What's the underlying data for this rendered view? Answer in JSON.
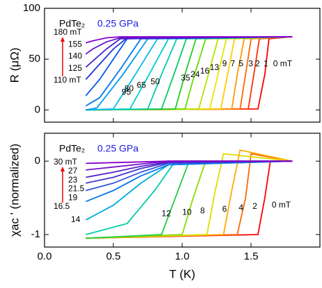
{
  "chart_data": [
    {
      "type": "line",
      "annotation": "PdTe₂",
      "pressure": "0.25 GPa",
      "ylabel": "R (μΩ)",
      "xlim": [
        0,
        2.0
      ],
      "ylim": [
        -12,
        100
      ],
      "xticks": [
        0,
        0.5,
        1,
        1.5
      ],
      "yticks": [
        0,
        50,
        100
      ],
      "series": [
        {
          "name": "0 mT",
          "color": "#ff0000",
          "x": [
            0.3,
            1.55,
            1.6,
            1.63,
            1.8
          ],
          "values": [
            0,
            1,
            35,
            70,
            72
          ]
        },
        {
          "name": "1",
          "color": "#ff3300",
          "x": [
            0.3,
            1.48,
            1.52,
            1.56,
            1.8
          ],
          "values": [
            0,
            1,
            35,
            70,
            72
          ]
        },
        {
          "name": "2",
          "color": "#ff6600",
          "x": [
            0.3,
            1.42,
            1.46,
            1.5,
            1.8
          ],
          "values": [
            0,
            1,
            35,
            70,
            72
          ]
        },
        {
          "name": "3",
          "color": "#ff9900",
          "x": [
            0.3,
            1.36,
            1.4,
            1.45,
            1.8
          ],
          "values": [
            0,
            1,
            35,
            70,
            72
          ]
        },
        {
          "name": "5",
          "color": "#ffcc00",
          "x": [
            0.3,
            1.28,
            1.33,
            1.38,
            1.8
          ],
          "values": [
            0,
            1,
            35,
            70,
            72
          ]
        },
        {
          "name": "7",
          "color": "#e6e600",
          "x": [
            0.3,
            1.2,
            1.26,
            1.32,
            1.8
          ],
          "values": [
            0,
            1,
            35,
            70,
            72
          ]
        },
        {
          "name": "9",
          "color": "#b3e600",
          "x": [
            0.3,
            1.12,
            1.19,
            1.26,
            1.8
          ],
          "values": [
            0,
            1,
            35,
            70,
            72
          ]
        },
        {
          "name": "13",
          "color": "#66dd00",
          "x": [
            0.3,
            1.02,
            1.09,
            1.17,
            1.8
          ],
          "values": [
            0,
            1,
            35,
            70,
            72
          ]
        },
        {
          "name": "16",
          "color": "#22cc22",
          "x": [
            0.3,
            0.95,
            1.02,
            1.1,
            1.8
          ],
          "values": [
            0,
            1,
            35,
            70,
            72
          ]
        },
        {
          "name": "24",
          "color": "#00cc66",
          "x": [
            0.3,
            0.85,
            0.94,
            1.03,
            1.8
          ],
          "values": [
            0,
            1,
            35,
            70,
            72
          ]
        },
        {
          "name": "35",
          "color": "#00ccaa",
          "x": [
            0.3,
            0.75,
            0.85,
            0.96,
            1.8
          ],
          "values": [
            0,
            1,
            35,
            70,
            72
          ]
        },
        {
          "name": "50",
          "color": "#00cccc",
          "x": [
            0.3,
            0.62,
            0.76,
            0.9,
            1.8
          ],
          "values": [
            0,
            1,
            35,
            70,
            72
          ]
        },
        {
          "name": "65",
          "color": "#00bbee",
          "x": [
            0.3,
            0.5,
            0.66,
            0.82,
            1.8
          ],
          "values": [
            0,
            1,
            35,
            70,
            72
          ]
        },
        {
          "name": "80",
          "color": "#0099ee",
          "x": [
            0.3,
            0.38,
            0.57,
            0.75,
            1.8
          ],
          "values": [
            0,
            2,
            35,
            70,
            72
          ]
        },
        {
          "name": "95",
          "color": "#0077ee",
          "x": [
            0.3,
            0.4,
            0.55,
            0.7,
            1.8
          ],
          "values": [
            4,
            12,
            40,
            70,
            72
          ]
        },
        {
          "name": "110 mT",
          "color": "#0055ee",
          "x": [
            0.3,
            0.4,
            0.5,
            0.6,
            1.8
          ],
          "values": [
            14,
            30,
            50,
            70,
            72
          ]
        },
        {
          "name": "125",
          "color": "#2233dd",
          "x": [
            0.3,
            0.4,
            0.5,
            0.6,
            1.8
          ],
          "values": [
            30,
            45,
            60,
            71,
            72
          ]
        },
        {
          "name": "140",
          "color": "#4422cc",
          "x": [
            0.3,
            0.35,
            0.45,
            0.55,
            1.8
          ],
          "values": [
            42,
            48,
            60,
            70,
            72
          ]
        },
        {
          "name": "155",
          "color": "#6611cc",
          "x": [
            0.3,
            0.35,
            0.45,
            0.55,
            1.8
          ],
          "values": [
            55,
            60,
            67,
            71,
            72
          ]
        },
        {
          "name": "180 mT",
          "color": "#8800cc",
          "x": [
            0.3,
            0.35,
            0.45,
            0.55,
            1.8
          ],
          "values": [
            66,
            68,
            71,
            72,
            72
          ]
        }
      ]
    },
    {
      "type": "line",
      "annotation": "PdTe₂",
      "pressure": "0.25 GPa",
      "ylabel": "χac ' (normalized)",
      "xlabel": "T (K)",
      "xlim": [
        0,
        2.0
      ],
      "ylim": [
        -1.17,
        0.38
      ],
      "xticks": [
        {
          "value": 0,
          "label": "0.0"
        },
        0.5,
        {
          "value": 1,
          "label": "1.0"
        },
        1.5
      ],
      "yticks": [
        -1,
        0
      ],
      "series": [
        {
          "name": "0 mT",
          "color": "#ff0000",
          "x": [
            0.3,
            1.55,
            1.6,
            1.64,
            1.8
          ],
          "values": [
            -1.05,
            -1.0,
            -0.5,
            0,
            0
          ]
        },
        {
          "name": "2",
          "color": "#ff6600",
          "x": [
            0.3,
            1.4,
            1.46,
            1.5,
            1.8
          ],
          "values": [
            -1.05,
            -1.0,
            -0.5,
            0.1,
            0
          ]
        },
        {
          "name": "4",
          "color": "#ffaa00",
          "x": [
            0.3,
            1.3,
            1.36,
            1.42,
            1.8
          ],
          "values": [
            -1.05,
            -1.0,
            -0.4,
            0.15,
            0
          ]
        },
        {
          "name": "6",
          "color": "#dddd00",
          "x": [
            0.3,
            1.18,
            1.24,
            1.3,
            1.8
          ],
          "values": [
            -1.05,
            -1.0,
            -0.4,
            0.1,
            0
          ]
        },
        {
          "name": "8",
          "color": "#88dd00",
          "x": [
            0.3,
            1.0,
            1.08,
            1.17,
            1.8
          ],
          "values": [
            -1.05,
            -1.0,
            -0.5,
            0,
            0
          ]
        },
        {
          "name": "10",
          "color": "#22cc44",
          "x": [
            0.3,
            0.85,
            0.95,
            1.05,
            1.8
          ],
          "values": [
            -1.05,
            -1.0,
            -0.5,
            0,
            0
          ]
        },
        {
          "name": "12",
          "color": "#00ccaa",
          "x": [
            0.3,
            0.6,
            0.8,
            0.95,
            1.8
          ],
          "values": [
            -1.0,
            -0.85,
            -0.4,
            0,
            0
          ]
        },
        {
          "name": "14",
          "color": "#00aadd",
          "x": [
            0.3,
            0.5,
            0.7,
            0.9,
            1.8
          ],
          "values": [
            -0.8,
            -0.6,
            -0.3,
            -0.05,
            0
          ]
        },
        {
          "name": "16.5",
          "color": "#0077ee",
          "x": [
            0.3,
            0.5,
            0.7,
            0.9,
            1.8
          ],
          "values": [
            -0.55,
            -0.4,
            -0.2,
            -0.05,
            0
          ]
        },
        {
          "name": "19",
          "color": "#3355dd",
          "x": [
            0.3,
            0.5,
            0.7,
            0.9,
            1.8
          ],
          "values": [
            -0.4,
            -0.3,
            -0.15,
            -0.03,
            0
          ]
        },
        {
          "name": "21.5",
          "color": "#4433cc",
          "x": [
            0.3,
            0.5,
            0.7,
            0.9,
            1.8
          ],
          "values": [
            -0.3,
            -0.22,
            -0.1,
            -0.02,
            0
          ]
        },
        {
          "name": "23",
          "color": "#5522cc",
          "x": [
            0.3,
            0.5,
            0.7,
            0.9,
            1.8
          ],
          "values": [
            -0.22,
            -0.15,
            -0.07,
            -0.01,
            0
          ]
        },
        {
          "name": "27",
          "color": "#7711cc",
          "x": [
            0.3,
            0.5,
            0.7,
            0.9,
            1.8
          ],
          "values": [
            -0.12,
            -0.08,
            -0.04,
            0,
            0
          ]
        },
        {
          "name": "30 mT",
          "color": "#8800cc",
          "x": [
            0.3,
            0.5,
            0.7,
            0.9,
            1.8
          ],
          "values": [
            -0.03,
            -0.02,
            -0.01,
            0,
            0
          ]
        }
      ]
    }
  ]
}
